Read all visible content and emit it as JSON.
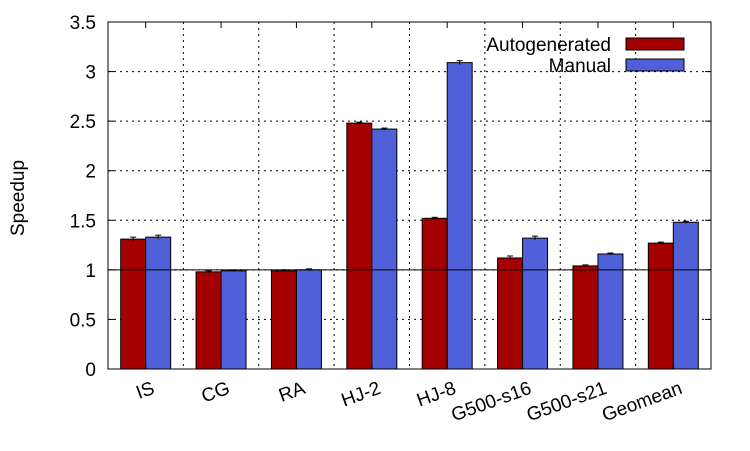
{
  "chart_data": {
    "type": "bar",
    "title": "",
    "xlabel": "",
    "ylabel": "Speedup",
    "ylim": [
      0,
      3.5
    ],
    "yticks": [
      "0",
      "0.5",
      "1",
      "1.5",
      "2",
      "2.5",
      "3",
      "3.5"
    ],
    "grid": true,
    "reference_line": 1,
    "legend_position": "top-right",
    "categories": [
      "IS",
      "CG",
      "RA",
      "HJ-2",
      "HJ-8",
      "G500-s16",
      "G500-s21",
      "Geomean"
    ],
    "series": [
      {
        "name": "Autogenerated",
        "color": "#a50000",
        "values": [
          1.31,
          0.98,
          0.99,
          2.48,
          1.52,
          1.12,
          1.04,
          1.27
        ],
        "errors": [
          0.02,
          0.01,
          0.01,
          0.01,
          0.01,
          0.02,
          0.01,
          0.01
        ]
      },
      {
        "name": "Manual",
        "color": "#5060d8",
        "values": [
          1.33,
          0.99,
          1.0,
          2.42,
          3.09,
          1.32,
          1.16,
          1.48
        ],
        "errors": [
          0.02,
          0.01,
          0.01,
          0.01,
          0.02,
          0.02,
          0.01,
          0.01
        ]
      }
    ]
  }
}
